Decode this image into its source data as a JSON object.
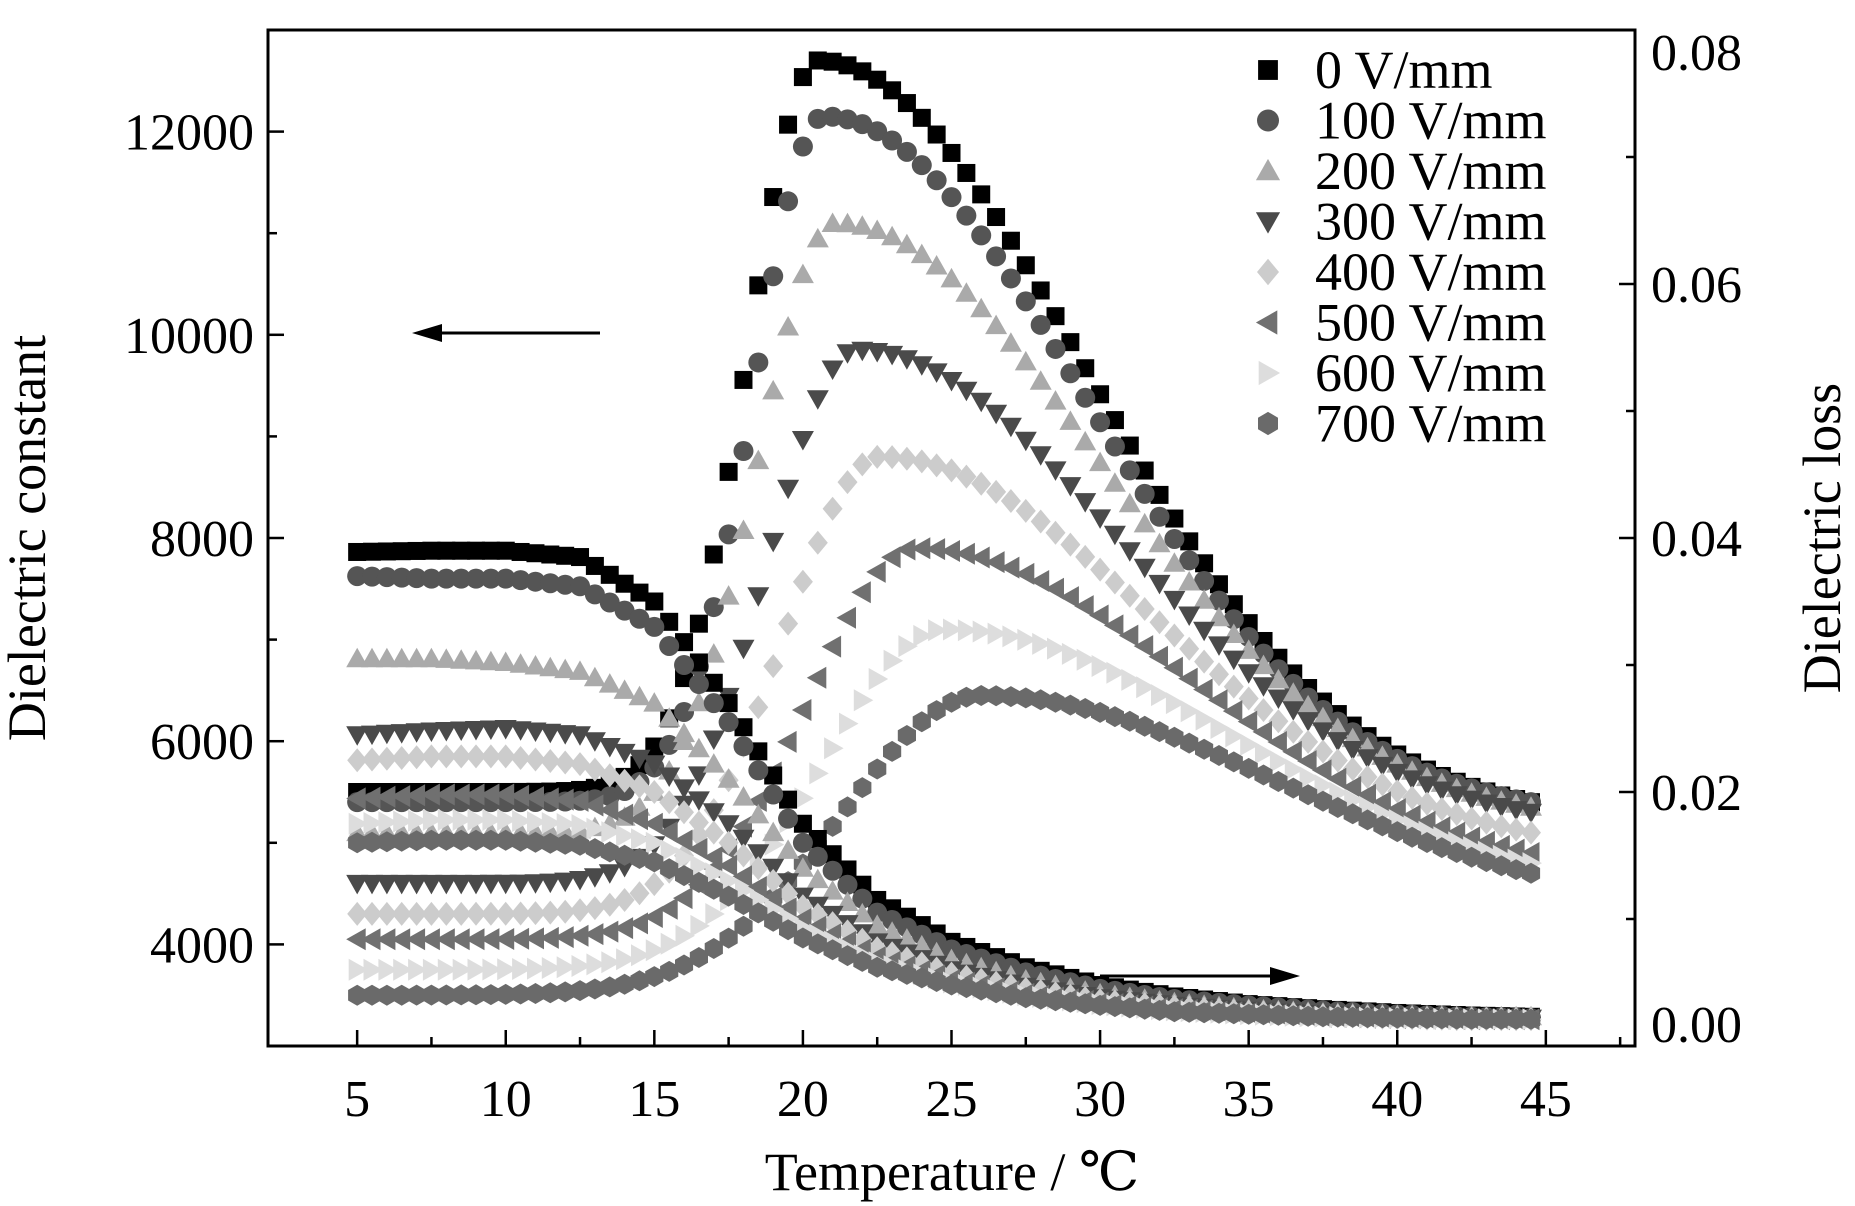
{
  "chart_data": {
    "type": "scatter",
    "title": "",
    "xlabel": "Temperature / ℃",
    "ylabel_left": "Dielectric constant",
    "ylabel_right": "Dielectric loss",
    "xlim": [
      2,
      48
    ],
    "ylim_left": [
      3000,
      13000
    ],
    "ylim_right": [
      0.0,
      0.08
    ],
    "x_ticks": [
      "5",
      "10",
      "15",
      "20",
      "25",
      "30",
      "35",
      "40",
      "45"
    ],
    "y_left_ticks": [
      "4000",
      "6000",
      "8000",
      "10000",
      "12000"
    ],
    "y_right_ticks": [
      "0.00",
      "0.02",
      "0.04",
      "0.06",
      "0.08"
    ],
    "grid": false,
    "legend_position": "top-right",
    "arrows": [
      {
        "points_to": "left-axis"
      },
      {
        "points_to": "right-axis"
      }
    ],
    "series": [
      {
        "name": "0 V/mm",
        "marker": "square",
        "color": "#000000",
        "constant": {
          "peak_T": 20.5,
          "peak": 12700,
          "start": 5500,
          "end": 5400,
          "w_low": 3.3,
          "w_high": 12.5
        },
        "loss": {
          "T": [
            5,
            7.5,
            10,
            12.5,
            15,
            17.5,
            20,
            22.5,
            25,
            27.5,
            30,
            32.5,
            35,
            37.5,
            40,
            42.5,
            44.5
          ],
          "v": [
            0.0389,
            0.039,
            0.039,
            0.0385,
            0.035,
            0.027,
            0.0175,
            0.0115,
            0.0082,
            0.0062,
            0.0048,
            0.0039,
            0.0033,
            0.0029,
            0.0026,
            0.0024,
            0.0023
          ]
        }
      },
      {
        "name": "100 V/mm",
        "marker": "circle",
        "color": "#555555",
        "constant": {
          "peak_T": 20.7,
          "peak": 12150,
          "start": 5400,
          "end": 5400,
          "w_low": 3.3,
          "w_high": 12.3
        },
        "loss": {
          "T": [
            5,
            7.5,
            10,
            12.5,
            15,
            17.5,
            20,
            22.5,
            25,
            27.5,
            30,
            32.5,
            35,
            37.5,
            40,
            42.5,
            44.5
          ],
          "v": [
            0.037,
            0.0368,
            0.0368,
            0.0362,
            0.033,
            0.0255,
            0.016,
            0.0105,
            0.0076,
            0.0058,
            0.0045,
            0.0037,
            0.0032,
            0.0028,
            0.0025,
            0.0023,
            0.0022
          ]
        }
      },
      {
        "name": "200 V/mm",
        "marker": "triangle-up",
        "color": "#aaaaaa",
        "constant": {
          "peak_T": 21.1,
          "peak": 11100,
          "start": 5100,
          "end": 5350,
          "w_low": 3.7,
          "w_high": 12.5
        },
        "loss": {
          "T": [
            5,
            7.5,
            10,
            12.5,
            15,
            17.5,
            20,
            22.5,
            25,
            27.5,
            30,
            32.5,
            35,
            37.5,
            40,
            42.5,
            44.5
          ],
          "v": [
            0.0305,
            0.0305,
            0.0302,
            0.0295,
            0.027,
            0.021,
            0.014,
            0.0095,
            0.0068,
            0.0052,
            0.0041,
            0.0034,
            0.0029,
            0.0026,
            0.0024,
            0.0023,
            0.0023
          ]
        }
      },
      {
        "name": "300 V/mm",
        "marker": "triangle-down",
        "color": "#4a4a4a",
        "constant": {
          "peak_T": 21.8,
          "peak": 9850,
          "start": 4600,
          "end": 5300,
          "w_low": 4.2,
          "w_high": 12.5
        },
        "loss": {
          "T": [
            5,
            7.5,
            10,
            12.5,
            15,
            17.5,
            20,
            22.5,
            25,
            27.5,
            30,
            32.5,
            35,
            37.5,
            40,
            42.5,
            44.5
          ],
          "v": [
            0.0245,
            0.0248,
            0.025,
            0.0245,
            0.0222,
            0.0175,
            0.0118,
            0.0082,
            0.006,
            0.0047,
            0.0038,
            0.0032,
            0.0028,
            0.0025,
            0.0023,
            0.0022,
            0.0022
          ]
        }
      },
      {
        "name": "400 V/mm",
        "marker": "diamond",
        "color": "#cccccc",
        "constant": {
          "peak_T": 22.6,
          "peak": 8800,
          "start": 4300,
          "end": 5100,
          "w_low": 4.6,
          "w_high": 12.8
        },
        "loss": {
          "T": [
            5,
            7.5,
            10,
            12.5,
            15,
            17.5,
            20,
            22.5,
            25,
            27.5,
            30,
            32.5,
            35,
            37.5,
            40,
            42.5,
            44.5
          ],
          "v": [
            0.0225,
            0.0228,
            0.0228,
            0.0222,
            0.02,
            0.016,
            0.011,
            0.0077,
            0.0057,
            0.0045,
            0.0036,
            0.0031,
            0.0027,
            0.0024,
            0.0022,
            0.0021,
            0.0021
          ]
        }
      },
      {
        "name": "500 V/mm",
        "marker": "triangle-left",
        "color": "#707070",
        "constant": {
          "peak_T": 23.8,
          "peak": 7900,
          "start": 4050,
          "end": 4900,
          "w_low": 5.2,
          "w_high": 13.0
        },
        "loss": {
          "T": [
            5,
            7.5,
            10,
            12.5,
            15,
            17.5,
            20,
            22.5,
            25,
            27.5,
            30,
            32.5,
            35,
            37.5,
            40,
            42.5,
            44.5
          ],
          "v": [
            0.0195,
            0.0198,
            0.0198,
            0.0193,
            0.0175,
            0.0142,
            0.01,
            0.007,
            0.0052,
            0.0041,
            0.0034,
            0.0029,
            0.0026,
            0.0023,
            0.0022,
            0.0021,
            0.0021
          ]
        }
      },
      {
        "name": "600 V/mm",
        "marker": "triangle-right",
        "color": "#dddddd",
        "constant": {
          "peak_T": 24.8,
          "peak": 7100,
          "start": 3750,
          "end": 4800,
          "w_low": 5.8,
          "w_high": 13.5
        },
        "loss": {
          "T": [
            5,
            7.5,
            10,
            12.5,
            15,
            17.5,
            20,
            22.5,
            25,
            27.5,
            30,
            32.5,
            35,
            37.5,
            40,
            42.5,
            44.5
          ],
          "v": [
            0.0175,
            0.0178,
            0.0178,
            0.0174,
            0.016,
            0.013,
            0.0093,
            0.0066,
            0.005,
            0.004,
            0.0033,
            0.0028,
            0.0025,
            0.0023,
            0.0022,
            0.0021,
            0.0021
          ]
        }
      },
      {
        "name": "700 V/mm",
        "marker": "hexagon",
        "color": "#6a6a6a",
        "constant": {
          "peak_T": 26.0,
          "peak": 6450,
          "start": 3500,
          "end": 4700,
          "w_low": 6.6,
          "w_high": 14.0
        },
        "loss": {
          "T": [
            5,
            7.5,
            10,
            12.5,
            15,
            17.5,
            20,
            22.5,
            25,
            27.5,
            30,
            32.5,
            35,
            37.5,
            40,
            42.5,
            44.5
          ],
          "v": [
            0.016,
            0.0162,
            0.0162,
            0.0158,
            0.0145,
            0.0118,
            0.0085,
            0.0062,
            0.0048,
            0.0038,
            0.0032,
            0.0027,
            0.0025,
            0.0023,
            0.0022,
            0.0021,
            0.0021
          ]
        }
      }
    ]
  }
}
